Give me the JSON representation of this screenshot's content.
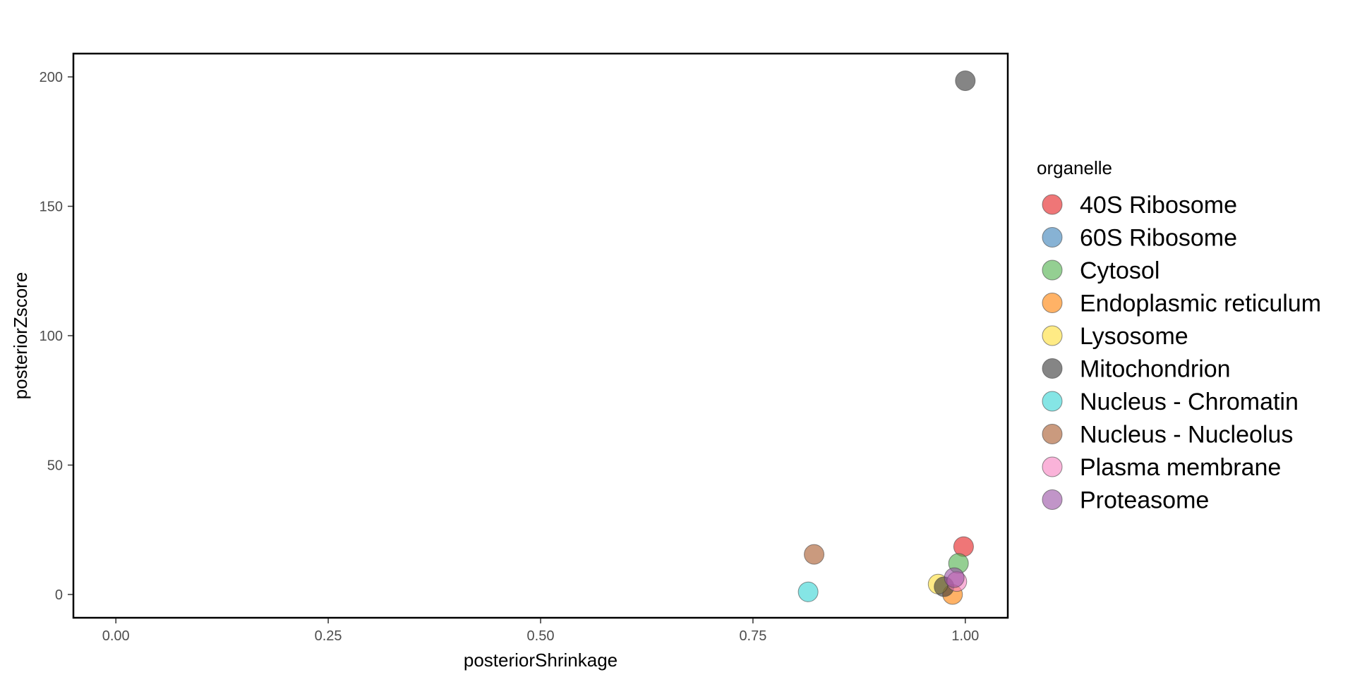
{
  "chart_data": {
    "type": "scatter",
    "xlabel": "posteriorShrinkage",
    "ylabel": "posteriorZscore",
    "xlim": [
      -0.05,
      1.05
    ],
    "ylim": [
      -9,
      209
    ],
    "x_ticks": [
      0,
      0.25,
      0.5,
      0.75,
      1
    ],
    "x_tick_labels": [
      "0.00",
      "0.25",
      "0.50",
      "0.75",
      "1.00"
    ],
    "y_ticks": [
      0,
      50,
      100,
      150,
      200
    ],
    "y_tick_labels": [
      "0",
      "50",
      "100",
      "150",
      "200"
    ],
    "grid": false,
    "legend": {
      "title": "organelle",
      "placement": "right"
    },
    "series": [
      {
        "name": "40S Ribosome",
        "color": "#E41A1C",
        "points": [
          [
            0.998,
            18.5
          ]
        ]
      },
      {
        "name": "60S Ribosome",
        "color": "#377EB8",
        "points": []
      },
      {
        "name": "Cytosol",
        "color": "#4DAF4A",
        "points": [
          [
            0.992,
            12
          ]
        ]
      },
      {
        "name": "Endoplasmic reticulum",
        "color": "#FF7F00",
        "points": [
          [
            0.985,
            0
          ]
        ]
      },
      {
        "name": "Lysosome",
        "color": "#FFDD33",
        "points": [
          [
            0.968,
            4
          ]
        ]
      },
      {
        "name": "Mitochondrion",
        "color": "#333333",
        "points": [
          [
            1.0,
            198.5
          ],
          [
            0.975,
            3
          ]
        ]
      },
      {
        "name": "Nucleus - Chromatin",
        "color": "#33D4D4",
        "points": [
          [
            0.815,
            1
          ]
        ]
      },
      {
        "name": "Nucleus - Nucleolus",
        "color": "#A65628",
        "points": [
          [
            0.822,
            15.5
          ]
        ]
      },
      {
        "name": "Plasma membrane",
        "color": "#F781BF",
        "points": [
          [
            0.99,
            5
          ]
        ]
      },
      {
        "name": "Proteasome",
        "color": "#984EA3",
        "points": [
          [
            0.987,
            6.5
          ]
        ]
      }
    ]
  }
}
